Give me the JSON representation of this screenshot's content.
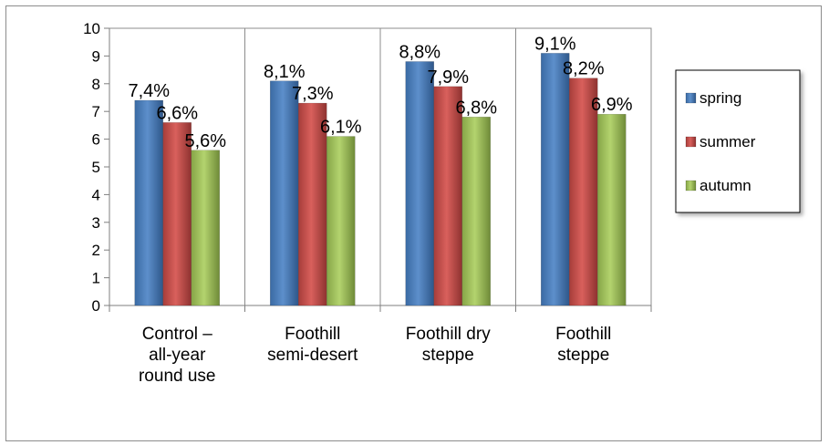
{
  "chart_data": {
    "type": "bar",
    "title": "",
    "xlabel": "",
    "ylabel": "",
    "ylim": [
      0,
      10
    ],
    "yticks": [
      "0",
      "1",
      "2",
      "3",
      "4",
      "5",
      "6",
      "7",
      "8",
      "9",
      "10"
    ],
    "grid": "vertical",
    "legend_position": "right",
    "categories": [
      [
        "Control –",
        "all-year",
        "round use"
      ],
      [
        "Foothill",
        "semi-desert"
      ],
      [
        "Foothill dry",
        "steppe"
      ],
      [
        "Foothill",
        "steppe"
      ]
    ],
    "series": [
      {
        "name": "spring",
        "color": "#4f81bd",
        "values": [
          7.4,
          8.1,
          8.8,
          9.1
        ],
        "labels": [
          "7,4%",
          "8,1%",
          "8,8%",
          "9,1%"
        ]
      },
      {
        "name": "summer",
        "color": "#c0504d",
        "values": [
          6.6,
          7.3,
          7.9,
          8.2
        ],
        "labels": [
          "6,6%",
          "7,3%",
          "7,9%",
          "8,2%"
        ]
      },
      {
        "name": "autumn",
        "color": "#9bbb59",
        "values": [
          5.6,
          6.1,
          6.8,
          6.9
        ],
        "labels": [
          "5,6%",
          "6,1%",
          "6,8%",
          "6,9%"
        ]
      }
    ]
  }
}
